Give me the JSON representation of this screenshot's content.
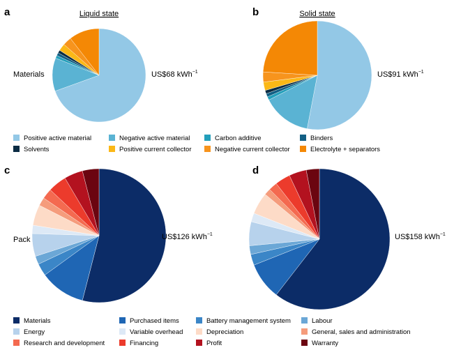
{
  "figure": {
    "panels": [
      {
        "letter": "a",
        "title": "Liquid state",
        "side_label": "Materials",
        "value_label": "US$68 kWh",
        "value_sup": "−1"
      },
      {
        "letter": "b",
        "title": "Solid state",
        "side_label": "",
        "value_label": "US$91 kWh",
        "value_sup": "−1"
      },
      {
        "letter": "c",
        "title": "",
        "side_label": "Pack",
        "value_label": "US$126 kWh",
        "value_sup": "−1"
      },
      {
        "letter": "d",
        "title": "",
        "side_label": "",
        "value_label": "US$158 kWh",
        "value_sup": "−1"
      }
    ]
  },
  "legends": {
    "materials": [
      {
        "label": "Positive active material",
        "color": "#93c8e6"
      },
      {
        "label": "Negative active material",
        "color": "#5ab3d3"
      },
      {
        "label": "Carbon additive",
        "color": "#239fbb"
      },
      {
        "label": "Binders",
        "color": "#125f84"
      },
      {
        "label": "Solvents",
        "color": "#0b2c43"
      },
      {
        "label": "Positive current collector",
        "color": "#fbb817"
      },
      {
        "label": "Negative current collector",
        "color": "#f7941d"
      },
      {
        "label": "Electrolyte + separators",
        "color": "#f48805"
      }
    ],
    "pack": [
      {
        "label": "Materials",
        "color": "#0c2c67"
      },
      {
        "label": "Purchased items",
        "color": "#1f66b4"
      },
      {
        "label": "Battery management system",
        "color": "#3b86c7"
      },
      {
        "label": "Labour",
        "color": "#6ba7d6"
      },
      {
        "label": "Energy",
        "color": "#b7d2ec"
      },
      {
        "label": "Variable overhead",
        "color": "#dde9f6"
      },
      {
        "label": "Depreciation",
        "color": "#fddbc7"
      },
      {
        "label": "General, sales and administration",
        "color": "#f59c7c"
      },
      {
        "label": "Research and development",
        "color": "#f46a50"
      },
      {
        "label": "Financing",
        "color": "#ec3b2c"
      },
      {
        "label": "Profit",
        "color": "#b3121f"
      },
      {
        "label": "Warranty",
        "color": "#6b0510"
      }
    ]
  },
  "chart_data": [
    {
      "type": "pie",
      "title": "Liquid state",
      "categories": [
        "Positive active material",
        "Negative active material",
        "Carbon additive",
        "Binders",
        "Solvents",
        "Positive current collector",
        "Negative current collector",
        "Electrolyte + separators"
      ],
      "values": [
        69.5,
        11.5,
        1.0,
        1.0,
        1.0,
        2.5,
        3.0,
        10.5
      ],
      "unit": "percent of total (estimated)",
      "total_label": "US$68 kWh−1",
      "start_angle_deg": 0,
      "direction": "clockwise"
    },
    {
      "type": "pie",
      "title": "Solid state",
      "categories": [
        "Positive active material",
        "Negative active material",
        "Carbon additive",
        "Binders",
        "Solvents",
        "Positive current collector",
        "Negative current collector",
        "Electrolyte + separators"
      ],
      "values": [
        53.0,
        14.5,
        1.0,
        1.0,
        1.0,
        2.5,
        3.0,
        24.0
      ],
      "unit": "percent of total (estimated)",
      "total_label": "US$91 kWh−1",
      "start_angle_deg": 0,
      "direction": "clockwise"
    },
    {
      "type": "pie",
      "title": "",
      "categories": [
        "Materials",
        "Purchased items",
        "Battery management system",
        "Labour",
        "Energy",
        "Variable overhead",
        "Depreciation",
        "General, sales and administration",
        "Research and development",
        "Financing",
        "Profit",
        "Warranty"
      ],
      "values": [
        54.0,
        11.0,
        3.0,
        2.0,
        5.5,
        2.0,
        5.0,
        2.0,
        2.5,
        4.5,
        4.5,
        4.0
      ],
      "unit": "percent of total (estimated)",
      "total_label": "US$126 kWh−1",
      "start_angle_deg": 0,
      "direction": "clockwise"
    },
    {
      "type": "pie",
      "title": "",
      "categories": [
        "Materials",
        "Purchased items",
        "Battery management system",
        "Labour",
        "Energy",
        "Variable overhead",
        "Depreciation",
        "General, sales and administration",
        "Research and development",
        "Financing",
        "Profit",
        "Warranty"
      ],
      "values": [
        60.5,
        8.5,
        2.5,
        2.0,
        5.5,
        2.0,
        5.0,
        1.5,
        2.0,
        3.5,
        4.0,
        3.0
      ],
      "unit": "percent of total (estimated)",
      "total_label": "US$158 kWh−1",
      "start_angle_deg": 0,
      "direction": "clockwise"
    }
  ]
}
